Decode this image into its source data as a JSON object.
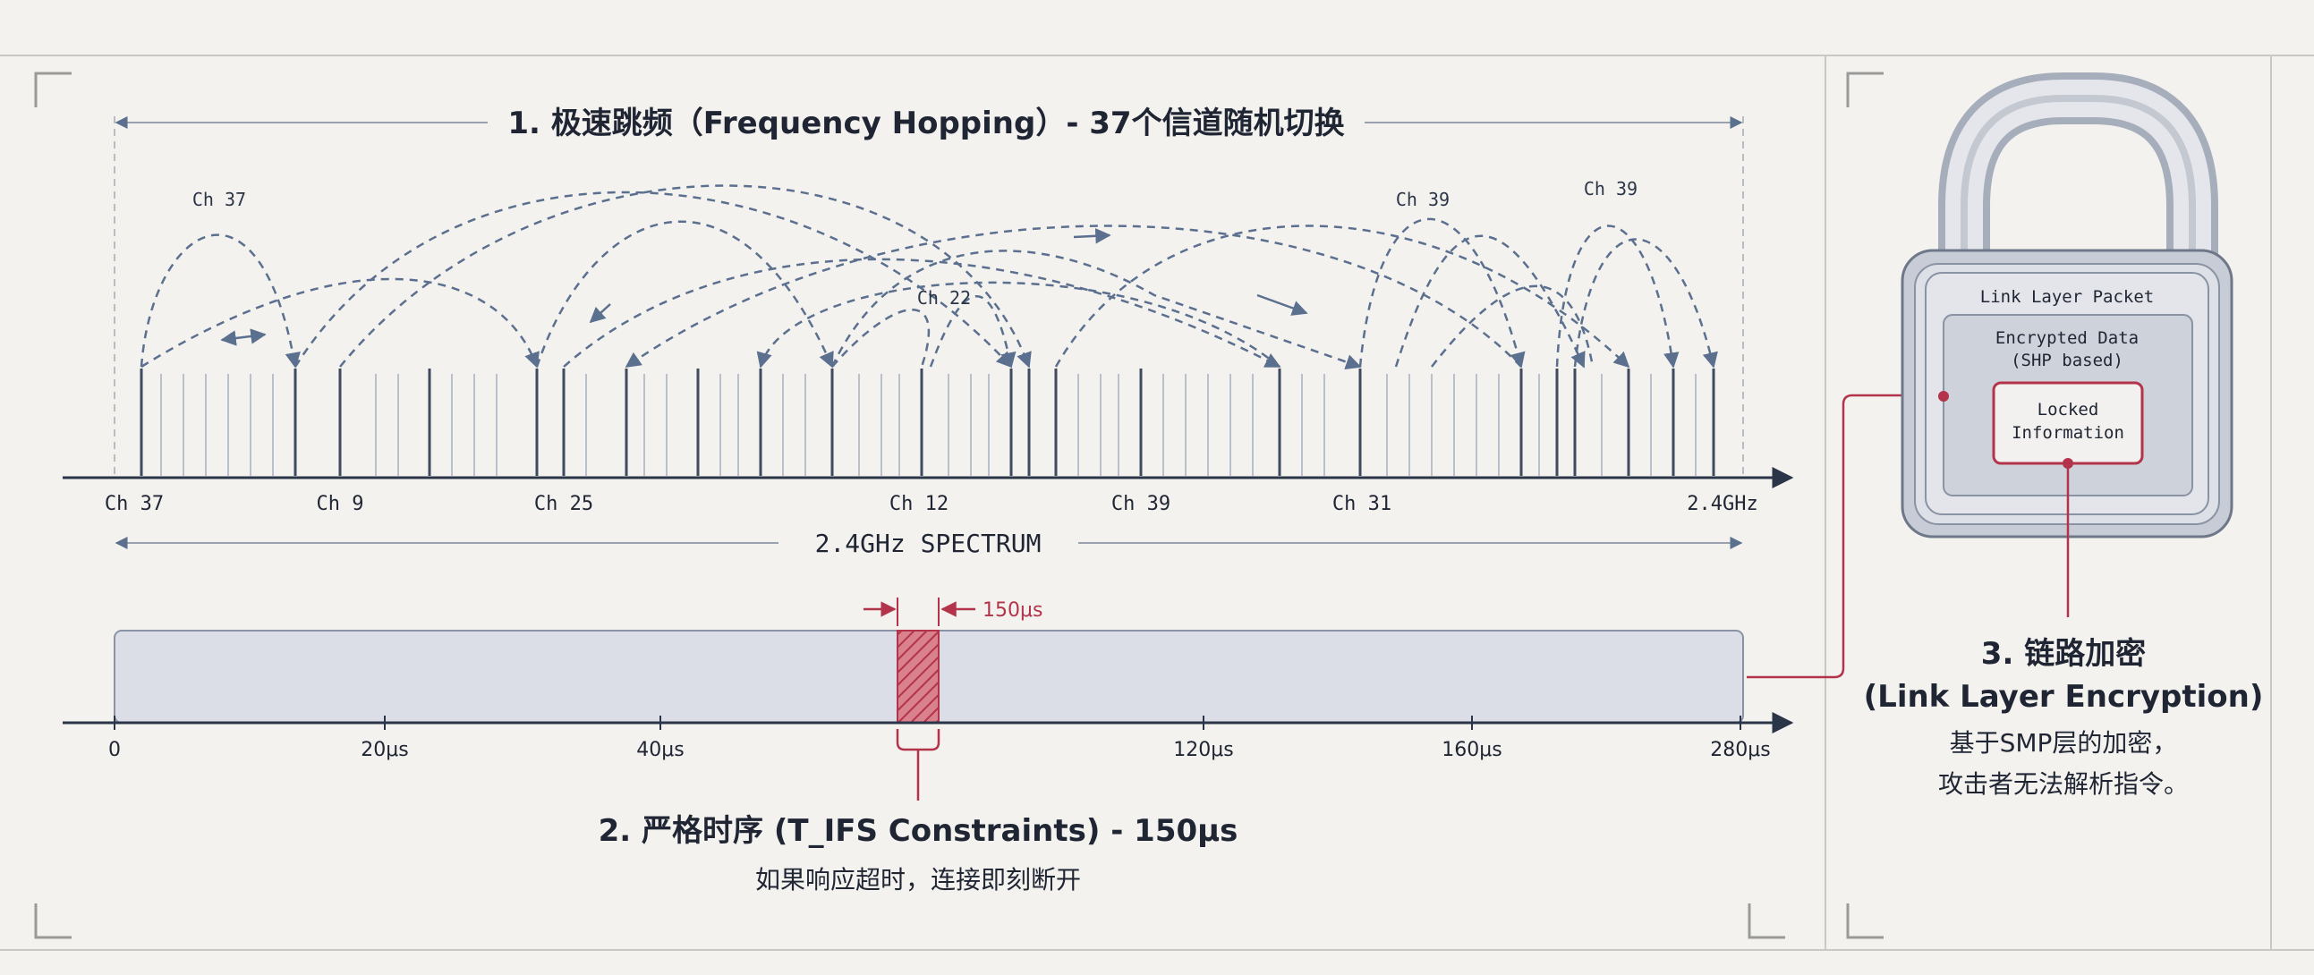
{
  "hopping": {
    "title": "1. 极速跳频（Frequency Hopping）- 37个信道随机切换",
    "hop_labels": [
      "Ch 37",
      "Ch 22",
      "Ch 39",
      "Ch 39"
    ],
    "axis_labels": [
      "Ch 37",
      "Ch 9",
      "Ch 25",
      "Ch 12",
      "Ch 39",
      "Ch 31",
      "2.4GHz"
    ],
    "spectrum_label": "2.4GHz SPECTRUM"
  },
  "timing": {
    "gap_label": "150μs",
    "tick_labels": [
      "0",
      "20μs",
      "40μs",
      "120μs",
      "160μs",
      "280μs"
    ],
    "title": "2. 严格时序 (T_IFS Constraints) - 150μs",
    "subtitle": "如果响应超时，连接即刻断开"
  },
  "encryption": {
    "packet_label": "Link Layer Packet",
    "data_label_line1": "Encrypted Data",
    "data_label_line2": "(SHP based)",
    "locked_line1": "Locked",
    "locked_line2": "Information",
    "title_line1": "3. 链路加密",
    "title_line2": "(Link Layer Encryption)",
    "desc_line1": "基于SMP层的加密，",
    "desc_line2": "攻击者无法解析指令。"
  },
  "colors": {
    "ink": "#2b3548",
    "arc": "#5b6f8e",
    "accent": "#b3344a",
    "bar_fill": "#dcdee7",
    "lock_fill": "#cfd3dc"
  }
}
